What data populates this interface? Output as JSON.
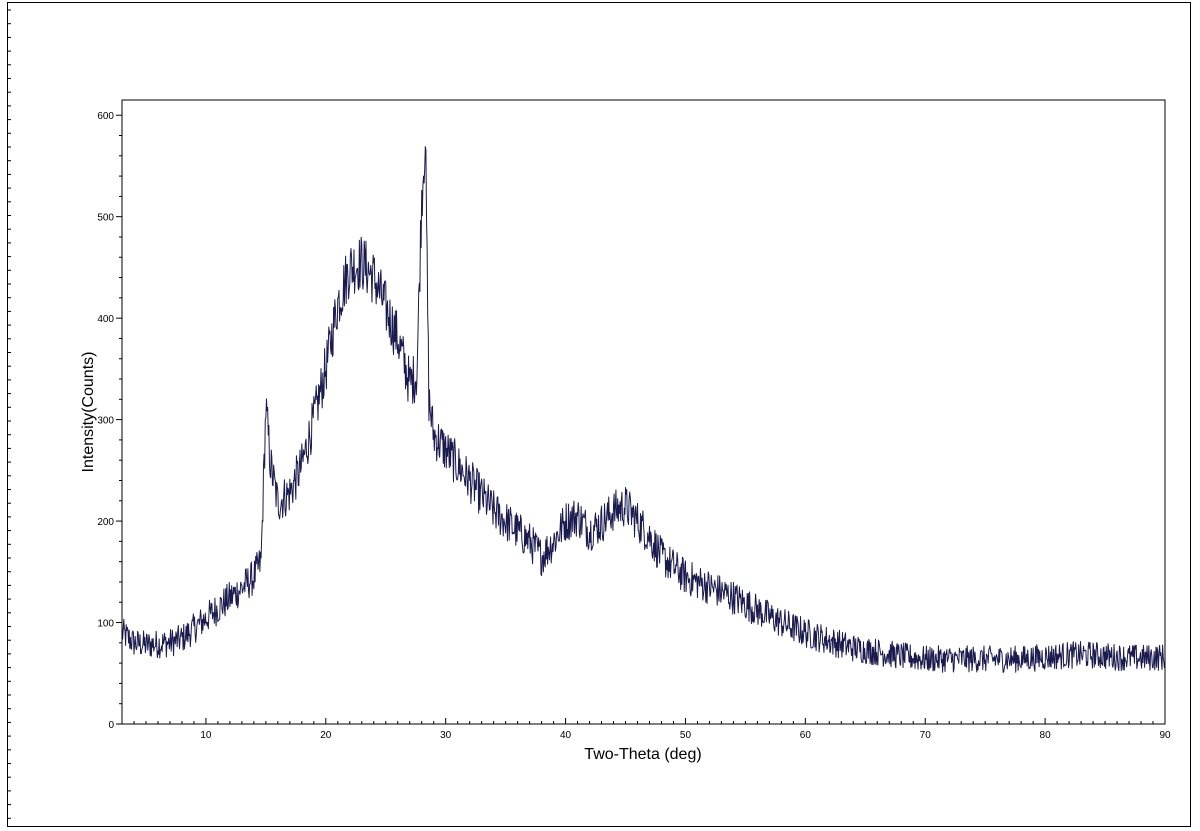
{
  "chart_data": {
    "type": "line",
    "title": "",
    "xlabel": "Two-Theta (deg)",
    "ylabel": "Intensity(Counts)",
    "xlim": [
      3,
      90
    ],
    "ylim": [
      0,
      615
    ],
    "xticks": [
      10,
      20,
      30,
      40,
      50,
      60,
      70,
      80,
      90
    ],
    "yticks": [
      0,
      100,
      200,
      300,
      400,
      500,
      600
    ],
    "grid": false,
    "series": [
      {
        "color": "#1a1a4e",
        "step": 0.05,
        "profile": [
          [
            3,
            90
          ],
          [
            4,
            80
          ],
          [
            5,
            78
          ],
          [
            6,
            79
          ],
          [
            7,
            80
          ],
          [
            8,
            84
          ],
          [
            9,
            94
          ],
          [
            10,
            104
          ],
          [
            11,
            114
          ],
          [
            12,
            124
          ],
          [
            13,
            134
          ],
          [
            14,
            145
          ],
          [
            14.6,
            160
          ],
          [
            15.0,
            312
          ],
          [
            15.4,
            255
          ],
          [
            16,
            218
          ],
          [
            17,
            228
          ],
          [
            18,
            255
          ],
          [
            19,
            300
          ],
          [
            20,
            350
          ],
          [
            21,
            415
          ],
          [
            22,
            450
          ],
          [
            23,
            455
          ],
          [
            24,
            440
          ],
          [
            25,
            410
          ],
          [
            26,
            380
          ],
          [
            27,
            335
          ],
          [
            27.6,
            345
          ],
          [
            28.0,
            520
          ],
          [
            28.3,
            580
          ],
          [
            28.6,
            320
          ],
          [
            29,
            285
          ],
          [
            30,
            270
          ],
          [
            31,
            255
          ],
          [
            32,
            240
          ],
          [
            33,
            225
          ],
          [
            34,
            210
          ],
          [
            35,
            200
          ],
          [
            36,
            190
          ],
          [
            37,
            180
          ],
          [
            38,
            165
          ],
          [
            39,
            180
          ],
          [
            40,
            200
          ],
          [
            41,
            205
          ],
          [
            42,
            190
          ],
          [
            43,
            198
          ],
          [
            44,
            210
          ],
          [
            45,
            215
          ],
          [
            46,
            200
          ],
          [
            47,
            185
          ],
          [
            48,
            165
          ],
          [
            49,
            155
          ],
          [
            50,
            145
          ],
          [
            52,
            135
          ],
          [
            54,
            125
          ],
          [
            56,
            112
          ],
          [
            58,
            100
          ],
          [
            60,
            90
          ],
          [
            62,
            82
          ],
          [
            64,
            75
          ],
          [
            66,
            71
          ],
          [
            68,
            67
          ],
          [
            70,
            64
          ],
          [
            72,
            64
          ],
          [
            74,
            64
          ],
          [
            76,
            64
          ],
          [
            78,
            64
          ],
          [
            80,
            66
          ],
          [
            82,
            68
          ],
          [
            84,
            68
          ],
          [
            86,
            66
          ],
          [
            88,
            65
          ],
          [
            90,
            66
          ]
        ]
      }
    ]
  }
}
